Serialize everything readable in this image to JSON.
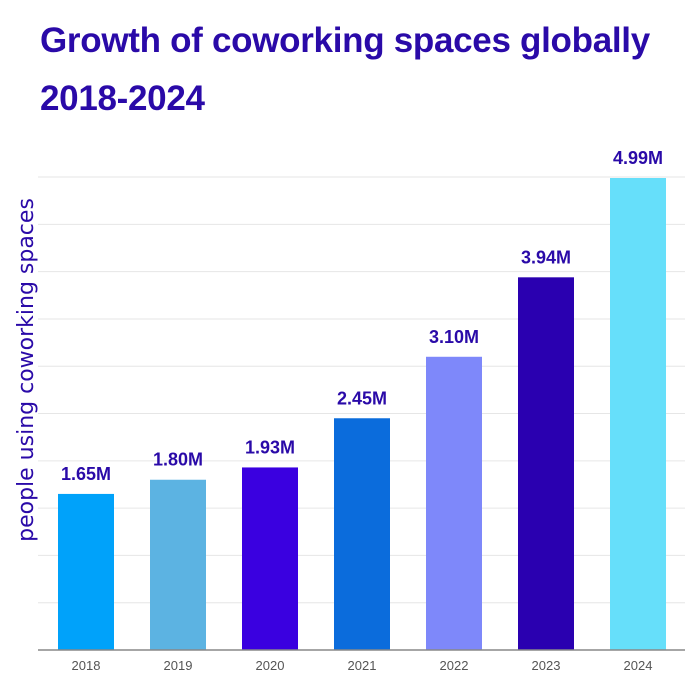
{
  "chart_data": {
    "type": "bar",
    "title": "Growth of coworking spaces globally 2018-2024",
    "xlabel": "",
    "ylabel": "people using coworking spaces",
    "categories": [
      "2018",
      "2019",
      "2020",
      "2021",
      "2022",
      "2023",
      "2024"
    ],
    "values": [
      1.65,
      1.8,
      1.93,
      2.45,
      3.1,
      3.94,
      4.99
    ],
    "value_labels": [
      "1.65M",
      "1.80M",
      "1.93M",
      "2.45M",
      "3.10M",
      "3.94M",
      "4.99M"
    ],
    "colors": [
      "#00a2fa",
      "#5cb3e2",
      "#3a00e0",
      "#0b6cdc",
      "#7e88fa",
      "#2a00b0",
      "#66dffa"
    ],
    "ylim": [
      0,
      5
    ],
    "grid": true,
    "legend": "none"
  },
  "style": {
    "title_color": "#2a0aa8",
    "label_color": "#2a0aa8",
    "grid_color": "#e6e6e6",
    "axis_color": "#888888",
    "tick_color": "#555555"
  }
}
